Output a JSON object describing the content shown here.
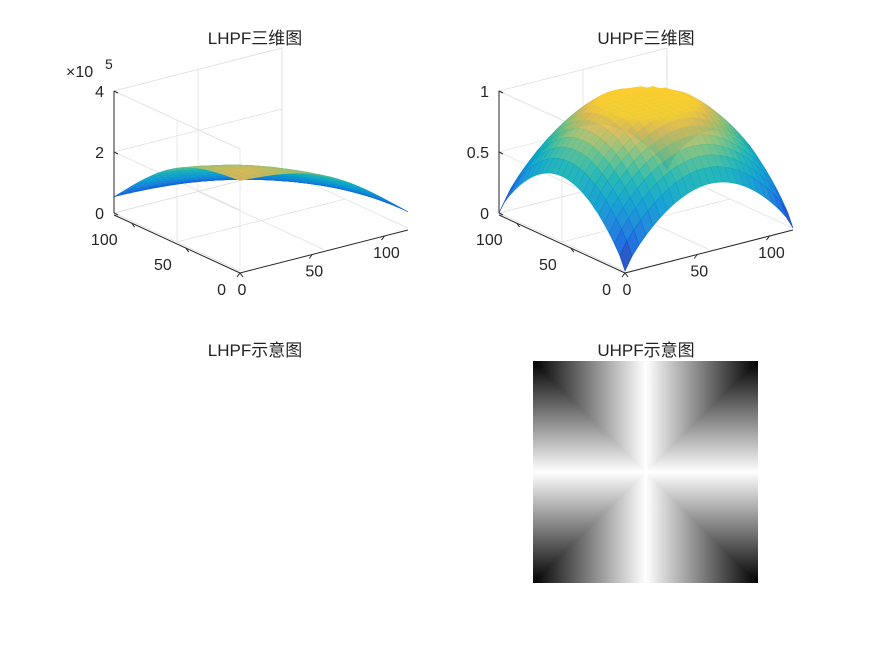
{
  "chart_data": [
    {
      "type": "surface",
      "title": "LHPF三维图",
      "x_ticks": [
        "0",
        "50",
        "100"
      ],
      "y_ticks": [
        "0",
        "50",
        "100"
      ],
      "z_ticks": [
        "0",
        "2",
        "4"
      ],
      "z_exponent": {
        "base": "×10",
        "power": "5"
      },
      "zlim": [
        0,
        4
      ],
      "grid": true,
      "surface_corner_values": {
        "near": 3.3,
        "left": 0,
        "right": 0,
        "far": 0
      },
      "colormap": "parula"
    },
    {
      "type": "surface",
      "title": "UHPF三维图",
      "x_ticks": [
        "0",
        "50",
        "100"
      ],
      "y_ticks": [
        "0",
        "50",
        "100"
      ],
      "z_ticks": [
        "0",
        "0.5",
        "1"
      ],
      "zlim": [
        0,
        1
      ],
      "grid": true,
      "surface_corner_values": {
        "near": 0,
        "left": 0,
        "right": 0,
        "far": 0
      },
      "colormap": "parula"
    },
    {
      "type": "image",
      "title": "LHPF示意图"
    },
    {
      "type": "image",
      "title": "UHPF示意图",
      "colormap": "gray"
    }
  ]
}
